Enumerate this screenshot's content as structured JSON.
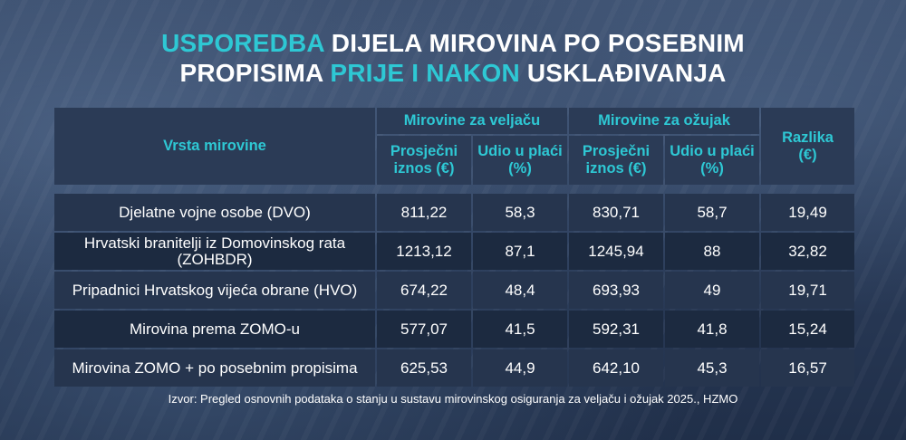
{
  "title": {
    "part1_highlight": "USPOREDBA",
    "part1_rest": " DIJELA MIROVINA PO POSEBNIM",
    "part2_start": "PROPISIMA ",
    "part2_highlight": "PRIJE I NAKON",
    "part2_end": " USKLAĐIVANJA"
  },
  "colors": {
    "accent": "#2ec8d4",
    "header_bg": "#2b3b56",
    "row_dark": "#1c2a40",
    "row_light": "#26354e"
  },
  "table": {
    "header": {
      "col_type": "Vrsta mirovine",
      "group_feb": "Mirovine za veljaču",
      "group_mar": "Mirovine za ožujak",
      "col_diff": "Razlika (€)",
      "sub_avg": "Prosječni iznos (€)",
      "sub_share": "Udio u plaći (%)"
    },
    "rows": [
      [
        "Djelatne vojne osobe (DVO)",
        "811,22",
        "58,3",
        "830,71",
        "58,7",
        "19,49"
      ],
      [
        "Hrvatski branitelji iz Domovinskog rata (ZOHBDR)",
        "1213,12",
        "87,1",
        "1245,94",
        "88",
        "32,82"
      ],
      [
        "Pripadnici Hrvatskog vijeća obrane (HVO)",
        "674,22",
        "48,4",
        "693,93",
        "49",
        "19,71"
      ],
      [
        "Mirovina prema ZOMO-u",
        "577,07",
        "41,5",
        "592,31",
        "41,8",
        "15,24"
      ],
      [
        "Mirovina ZOMO + po posebnim propisima",
        "625,53",
        "44,9",
        "642,10",
        "45,3",
        "16,57"
      ]
    ]
  },
  "chart_data": {
    "type": "table",
    "title": "USPOREDBA DIJELA MIROVINA PO POSEBNIM PROPISIMA PRIJE I NAKON USKLAĐIVANJA",
    "columns": [
      "Vrsta mirovine",
      "Mirovine za veljaču: Prosječni iznos (€)",
      "Mirovine za veljaču: Udio u plaći (%)",
      "Mirovine za ožujak: Prosječni iznos (€)",
      "Mirovine za ožujak: Udio u plaći (%)",
      "Razlika (€)"
    ],
    "rows": [
      [
        "Djelatne vojne osobe (DVO)",
        811.22,
        58.3,
        830.71,
        58.7,
        19.49
      ],
      [
        "Hrvatski branitelji iz Domovinskog rata (ZOHBDR)",
        1213.12,
        87.1,
        1245.94,
        88,
        32.82
      ],
      [
        "Pripadnici Hrvatskog vijeća obrane (HVO)",
        674.22,
        48.4,
        693.93,
        49,
        19.71
      ],
      [
        "Mirovina prema ZOMO-u",
        577.07,
        41.5,
        592.31,
        41.8,
        15.24
      ],
      [
        "Mirovina ZOMO + po posebnim propisima",
        625.53,
        44.9,
        642.1,
        45.3,
        16.57
      ]
    ]
  },
  "source": "Izvor: Pregled osnovnih podataka o stanju u sustavu mirovinskog osiguranja za veljaču i ožujak 2025., HZMO"
}
